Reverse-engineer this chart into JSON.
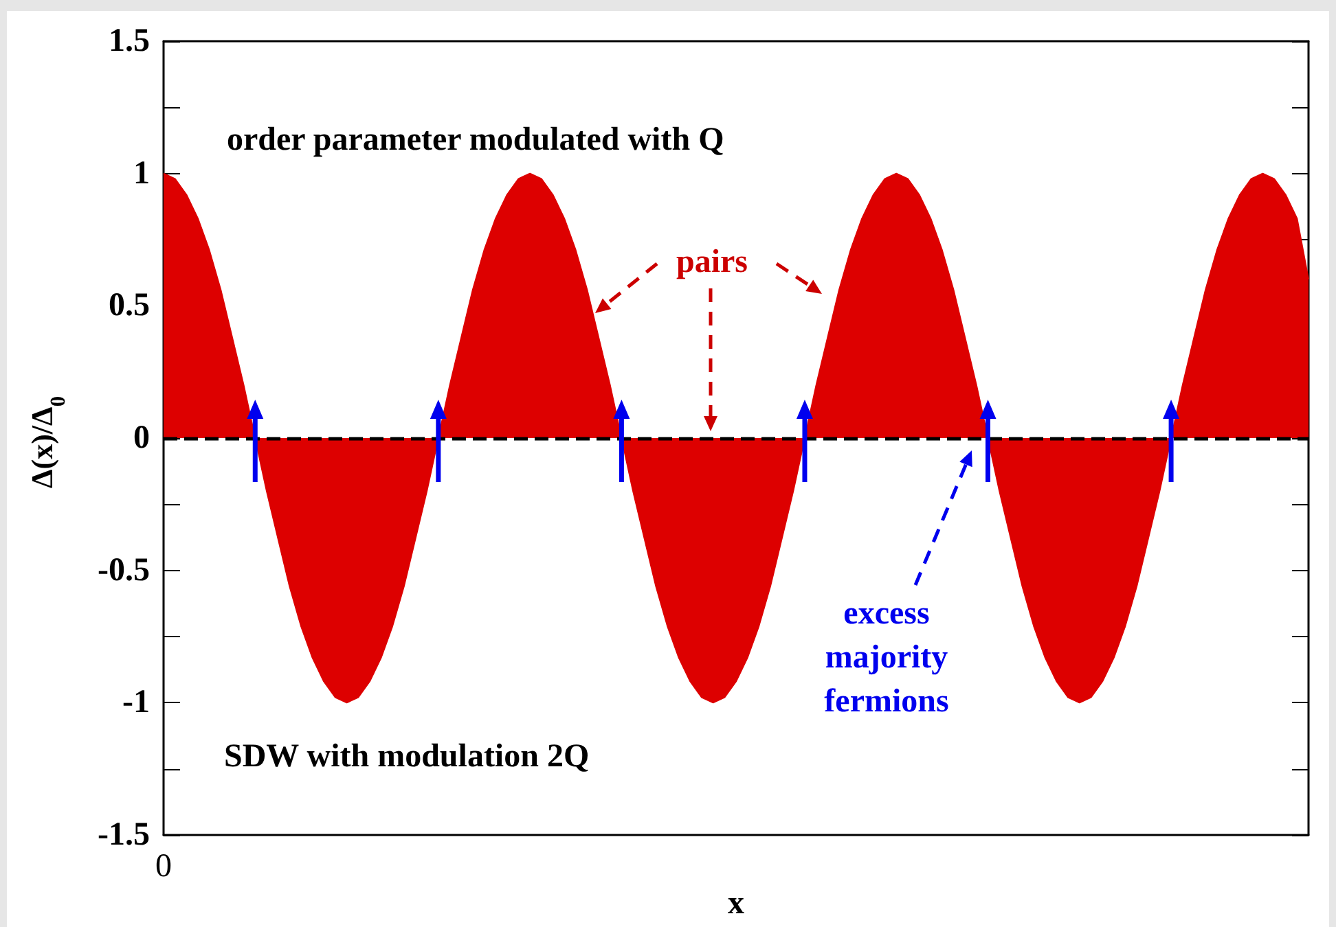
{
  "chart_data": {
    "type": "area",
    "xlabel": "x",
    "ylabel": "Δ(x)/Δ$_{0}$",
    "annotations": [
      "order parameter modulated with Q",
      "pairs",
      "excess majority fermions",
      "SDW with modulation 2Q",
      "0"
    ],
    "categories": [
      null,
      null,
      null,
      null,
      null,
      null,
      null,
      null,
      null,
      null,
      null,
      null,
      null,
      null,
      null,
      null,
      null,
      null,
      null,
      null,
      null,
      null,
      null,
      null,
      null,
      null,
      null,
      null,
      null,
      null,
      null,
      null,
      null,
      null,
      null,
      null,
      null,
      null,
      null,
      null,
      null,
      null,
      null,
      null,
      null,
      null,
      null,
      null,
      null,
      null,
      null,
      null,
      null,
      null,
      null,
      null,
      null,
      null,
      null,
      null,
      null,
      null,
      null,
      null,
      null,
      null,
      null,
      null,
      null,
      null,
      null,
      null,
      null,
      null,
      null,
      null,
      null,
      null,
      null,
      null,
      null,
      null,
      null,
      null,
      null,
      null,
      null,
      null,
      null,
      null,
      null,
      null,
      null,
      null,
      null,
      null,
      null,
      null,
      null,
      null,
      null
    ],
    "series": [
      {
        "color": "#dd0000",
        "values": [
          1,
          0.98,
          0.92,
          0.83,
          0.71,
          0.56,
          0.38,
          0.2,
          0,
          -0.2,
          -0.38,
          -0.56,
          -0.71,
          -0.83,
          -0.92,
          -0.98,
          -1,
          -0.98,
          -0.92,
          -0.83,
          -0.71,
          -0.56,
          -0.38,
          -0.2,
          0,
          0.2,
          0.38,
          0.56,
          0.71,
          0.83,
          0.92,
          0.98,
          1,
          0.98,
          0.92,
          0.83,
          0.71,
          0.56,
          0.38,
          0.2,
          0,
          -0.2,
          -0.38,
          -0.56,
          -0.71,
          -0.83,
          -0.92,
          -0.98,
          -1,
          -0.98,
          -0.92,
          -0.83,
          -0.71,
          -0.56,
          -0.38,
          -0.2,
          0,
          0.2,
          0.38,
          0.56,
          0.71,
          0.83,
          0.92,
          0.98,
          1,
          0.98,
          0.92,
          0.83,
          0.71,
          0.56,
          0.38,
          0.2,
          0,
          -0.2,
          -0.38,
          -0.56,
          -0.71,
          -0.83,
          -0.92,
          -0.98,
          -1,
          -0.98,
          -0.92,
          -0.83,
          -0.71,
          -0.56,
          -0.38,
          -0.2,
          0,
          0.2,
          0.38,
          0.56,
          0.71,
          0.83,
          0.92,
          0.98,
          1,
          0.98,
          0.92,
          0.83,
          0.6
        ]
      }
    ],
    "ylim": [
      -1.5,
      1.5
    ],
    "yticks": [
      -1.5,
      {
        "value": -1.25,
        "label": null
      },
      -1,
      {
        "value": -0.75,
        "label": null
      },
      -0.5,
      {
        "value": -0.25,
        "label": null
      },
      0,
      {
        "value": 0.25,
        "label": null
      },
      0.5,
      {
        "value": 0.75,
        "label": null
      },
      1,
      {
        "value": 1.25,
        "label": null
      },
      1.5
    ],
    "tick_labels": "y",
    "ref_lines": [
      {
        "axis": "y",
        "value": 0,
        "color": "#000000",
        "line_style": "dashed"
      }
    ]
  }
}
